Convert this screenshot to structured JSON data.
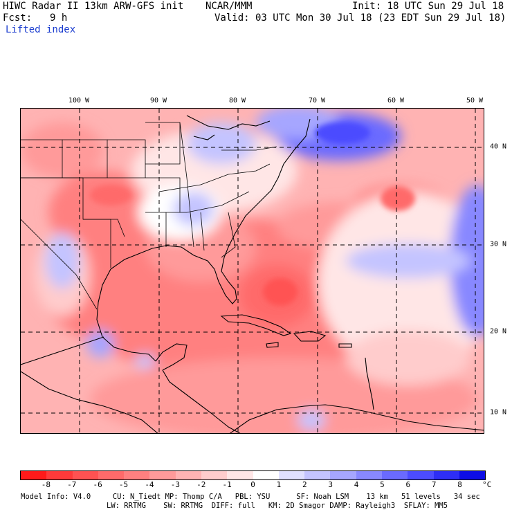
{
  "header": {
    "title": "HIWC Radar II 13km ARW-GFS init",
    "org": "NCAR/MMM",
    "init": "Init: 18 UTC Sun 29 Jul 18",
    "fcst_label": "Fcst:",
    "fcst_value": "9 h",
    "valid": "Valid: 03 UTC Mon 30 Jul 18 (23 EDT Sun 29 Jul 18)",
    "field": "Lifted index"
  },
  "map": {
    "lon_labels": [
      "100 W",
      "90 W",
      "80 W",
      "70 W",
      "60 W",
      "50 W"
    ],
    "lat_labels": [
      "40 N",
      "30 N",
      "20 N",
      "10 N"
    ]
  },
  "colorbar": {
    "unit": "°C",
    "ticks": [
      "-8",
      "-7",
      "-6",
      "-5",
      "-4",
      "-3",
      "-2",
      "-1",
      "0",
      "1",
      "2",
      "3",
      "4",
      "5",
      "6",
      "7",
      "8"
    ],
    "colors": [
      "#ff1a1a",
      "#ff3a3a",
      "#ff5252",
      "#ff6a6a",
      "#ff8080",
      "#ff9a9a",
      "#ffb3b3",
      "#ffcccc",
      "#ffe6e6",
      "#ffffff",
      "#e0e0ff",
      "#c4c4ff",
      "#a6a6ff",
      "#8888ff",
      "#6a6aff",
      "#4c4cff",
      "#2e2ef5",
      "#0d0de6"
    ]
  },
  "model_info": {
    "line1": "Model Info: V4.0     CU: N_Tiedt MP: Thomp C/A   PBL: YSU      SF: Noah LSM    13 km   51 levels   34 sec",
    "line2": "LW: RRTMG    SW: RRTMG  DIFF: full   KM: 2D Smagor DAMP: Rayleigh3  SFLAY: MM5"
  }
}
